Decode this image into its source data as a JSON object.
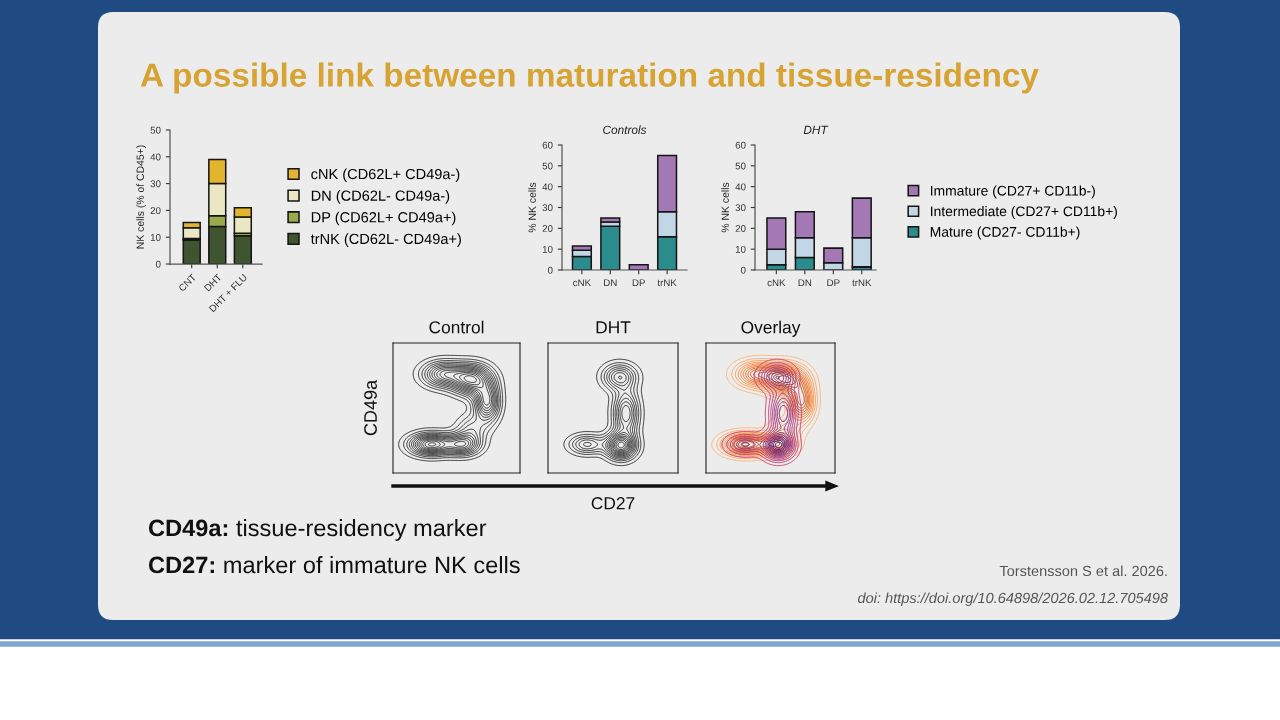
{
  "chart_data": [
    {
      "type": "other",
      "title": "A possible link between maturation and tissue-residency",
      "annotations": [
        "CD49a: tissue-residency marker",
        "CD27: marker of immature NK cells",
        "Torstensson S et al. 2026.",
        "doi: https://doi.org/10.64898/2026.02.12.705498"
      ]
    },
    {
      "type": "bar",
      "stacked": true,
      "categories": [
        "CNT",
        "DHT",
        "DHT + FLU"
      ],
      "ylabel": "NK cells (% of CD45+)",
      "ylim": [
        0,
        50
      ],
      "yticks": [
        0,
        10,
        20,
        30,
        40,
        50
      ],
      "legend": "right",
      "series": [
        {
          "name": "trNK (CD62L- CD49a+)",
          "color": "#3f5530",
          "values": [
            9,
            14,
            10.5
          ]
        },
        {
          "name": "DP (CD62L+ CD49a+)",
          "color": "#9aaa4c",
          "values": [
            0.5,
            4,
            1
          ]
        },
        {
          "name": "DN (CD62L- CD49a-)",
          "color": "#ebe7c2",
          "values": [
            4,
            12,
            6
          ]
        },
        {
          "name": "cNK (CD62L+ CD49a-)",
          "color": "#e3b52f",
          "values": [
            2,
            9,
            3.5
          ]
        }
      ]
    },
    {
      "type": "bar",
      "stacked": true,
      "title": "Controls",
      "categories": [
        "cNK",
        "DN",
        "DP",
        "trNK"
      ],
      "ylabel": "% NK cells",
      "ylim": [
        0,
        60
      ],
      "yticks": [
        0,
        10,
        20,
        30,
        40,
        50,
        60
      ],
      "series": [
        {
          "color": "#2a8c8c",
          "values": [
            6.5,
            21,
            0,
            16
          ]
        },
        {
          "color": "#c3d6e6",
          "values": [
            3,
            2,
            0,
            12
          ]
        },
        {
          "color": "#a478b4",
          "values": [
            2,
            2,
            2.5,
            27
          ]
        }
      ]
    },
    {
      "type": "bar",
      "stacked": true,
      "title": "DHT",
      "categories": [
        "cNK",
        "DN",
        "DP",
        "trNK"
      ],
      "ylabel": "% NK cells",
      "ylim": [
        0,
        60
      ],
      "yticks": [
        0,
        10,
        20,
        30,
        40,
        50,
        60
      ],
      "legend": "right",
      "series": [
        {
          "name": "Mature (CD27- CD11b+)",
          "color": "#2a8c8c",
          "values": [
            2.5,
            6,
            0,
            1.5
          ]
        },
        {
          "name": "Intermediate (CD27+ CD11b+)",
          "color": "#c3d6e6",
          "values": [
            7.5,
            9.5,
            3.5,
            14
          ]
        },
        {
          "name": "Immature (CD27+ CD11b-)",
          "color": "#a478b4",
          "values": [
            15,
            12.5,
            7,
            19
          ]
        }
      ]
    },
    {
      "type": "other",
      "title": "Control",
      "ylabel": "CD49a"
    },
    {
      "type": "other",
      "title": "DHT",
      "xlabel": "CD27"
    },
    {
      "type": "other",
      "title": "Overlay"
    }
  ]
}
